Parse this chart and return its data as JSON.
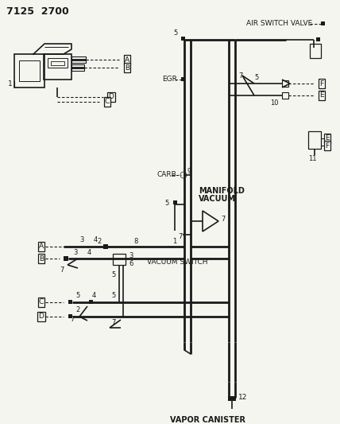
{
  "title": "7125  2700",
  "bg_color": "#f5f5f0",
  "line_color": "#1a1a1a",
  "figsize": [
    4.28,
    5.33
  ],
  "dpi": 100,
  "labels": {
    "air_switch_valve": "AIR SWITCH VALVE",
    "egr": "EGR",
    "carb": "CARB",
    "manifold_vacuum_1": "MANIFOLD",
    "manifold_vacuum_2": "VACUUM",
    "vacuum_switch": "VACUUM SWITCH",
    "vapor_canister": "VAPOR CANISTER"
  }
}
